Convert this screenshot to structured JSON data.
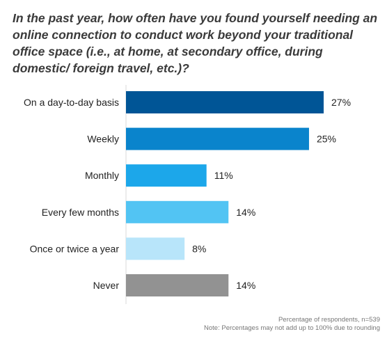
{
  "chart_data": {
    "type": "bar",
    "orientation": "horizontal",
    "title": "In the past year, how often have you found yourself needing an online connection to conduct work beyond your traditional office space (i.e., at home, at secondary office, during domestic/ foreign travel, etc.)?",
    "categories": [
      "On a day-to-day basis",
      "Weekly",
      "Monthly",
      "Every few months",
      "Once or twice a year",
      "Never"
    ],
    "values": [
      27,
      25,
      11,
      14,
      8,
      14
    ],
    "value_labels": [
      "27%",
      "25%",
      "11%",
      "14%",
      "8%",
      "14%"
    ],
    "colors": [
      "#005596",
      "#0a84cc",
      "#1ca7ea",
      "#52c4f3",
      "#b8e5fa",
      "#929292"
    ],
    "unit": "%",
    "grid": false,
    "legend": "none",
    "xlim": [
      0,
      27
    ],
    "notes": [
      "Percentage of respondents, n=539",
      "Note: Percentages may not add up to 100% due to rounding"
    ]
  }
}
